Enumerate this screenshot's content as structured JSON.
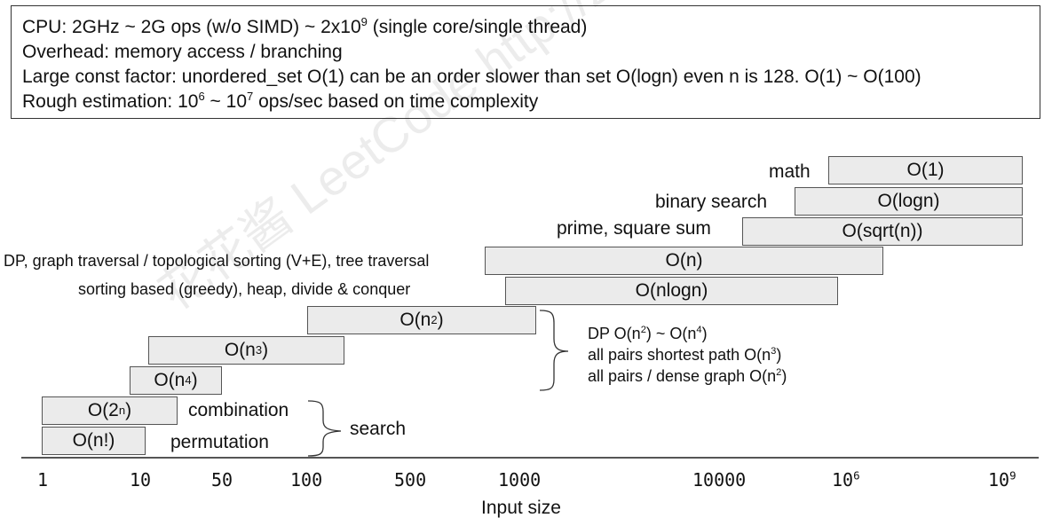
{
  "summary": {
    "cpu": {
      "pre": "CPU: 2GHz ~ 2G ops (w/o SIMD) ~ 2x10",
      "sup": "9",
      "post": " (single core/single thread)"
    },
    "overhead": "Overhead: memory access / branching",
    "const_factor": "Large const factor: unordered_set O(1) can be an order slower than set O(logn) even n is 128. O(1) ~ O(100)",
    "rough": {
      "pre": "Rough estimation: 10",
      "sup1": "6",
      "mid": " ~ 10",
      "sup2": "7",
      "post": " ops/sec based on time complexity"
    }
  },
  "complexities": [
    {
      "id": "o1",
      "base": "O(1)"
    },
    {
      "id": "ologn",
      "base": "O(logn)"
    },
    {
      "id": "osqrtn",
      "base": "O(sqrt(n))"
    },
    {
      "id": "on",
      "base": "O(n)"
    },
    {
      "id": "onlogn",
      "base": "O(nlogn)"
    },
    {
      "id": "on2",
      "base": "O(n",
      "sup": "2",
      "tail": ")"
    },
    {
      "id": "on3",
      "base": "O(n",
      "sup": "3",
      "tail": ")"
    },
    {
      "id": "on4",
      "base": "O(n",
      "sup": "4",
      "tail": ")"
    },
    {
      "id": "o2n",
      "base": "O(2",
      "sup": "n",
      "tail": ")"
    },
    {
      "id": "onfact",
      "base": "O(n!)"
    }
  ],
  "labels": {
    "math": "math",
    "binary_search": "binary search",
    "prime": "prime, square sum",
    "dp_graph": "DP, graph traversal / topological sorting (V+E), tree traversal",
    "sorting": "sorting based (greedy), heap, divide & conquer",
    "combination": "combination",
    "permutation": "permutation",
    "search": "search"
  },
  "poly_notes": {
    "dp": {
      "pre": "DP O(n",
      "sup1": "2",
      "mid": ") ~ O(n",
      "sup2": "4",
      "post": ")"
    },
    "apsp": {
      "pre": "all pairs shortest path O(n",
      "sup": "3",
      "post": ")"
    },
    "dense": {
      "pre": "all pairs / dense graph O(n",
      "sup": "2",
      "post": ")"
    }
  },
  "axis": {
    "title": "Input size",
    "ticks": [
      {
        "text": "1"
      },
      {
        "text": "10"
      },
      {
        "text": "50"
      },
      {
        "text": "100"
      },
      {
        "text": "500"
      },
      {
        "text": "1000"
      },
      {
        "text": "10000"
      },
      {
        "text": "10",
        "sup": "6"
      },
      {
        "text": "10",
        "sup": "9"
      }
    ]
  },
  "watermark": "花花酱 LeetCode http://zxi.mytechroad.com/blog/"
}
